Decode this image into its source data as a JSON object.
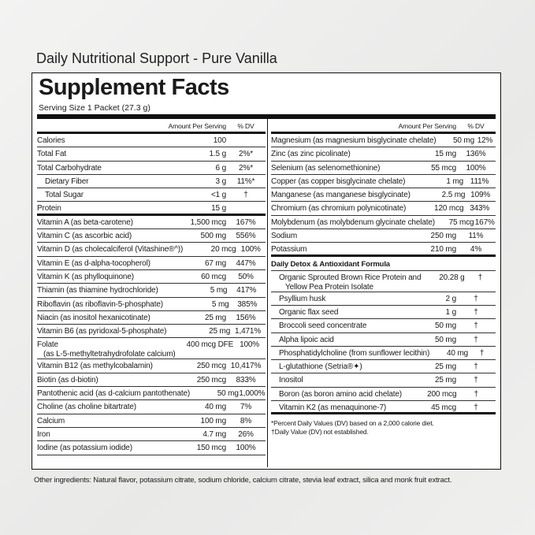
{
  "header": {
    "title": "Daily Nutritional Support - Pure Vanilla"
  },
  "facts": {
    "title": "Supplement Facts",
    "serving": "Serving Size 1 Packet (27.3 g)",
    "left": {
      "amount_header": "Amount Per Serving",
      "dv_header": "% DV",
      "rows": [
        {
          "name": "Calories",
          "amount": "100"
        },
        {
          "name": "Total Fat",
          "amount": "1.5 g",
          "dv": "2%*"
        },
        {
          "name": "Total Carbohydrate",
          "amount": "6 g",
          "dv": "2%*"
        },
        {
          "name": "Dietary Fiber",
          "amount": "3 g",
          "dv": "11%*",
          "indent": 1
        },
        {
          "name": "Total Sugar",
          "amount": "<1 g",
          "dv": "†",
          "indent": 2
        },
        {
          "name": "Protein",
          "amount": "15 g"
        },
        {
          "name": "Vitamin A (as beta-carotene)",
          "amount": "1,500 mcg",
          "dv": "167%"
        },
        {
          "name": "Vitamin C (as ascorbic acid)",
          "amount": "500 mg",
          "dv": "556%"
        },
        {
          "name": "Vitamin D (as cholecalciferol (Vitashine®^))",
          "amount": "20 mcg",
          "dv": "100%"
        },
        {
          "name": "Vitamin E (as d-alpha-tocopherol)",
          "amount": "67 mg",
          "dv": "447%"
        },
        {
          "name": "Vitamin K (as phylloquinone)",
          "amount": "60 mcg",
          "dv": "50%"
        },
        {
          "name": "Thiamin (as thiamine hydrochloride)",
          "amount": "5 mg",
          "dv": "417%"
        },
        {
          "name": "Riboflavin (as riboflavin-5-phosphate)",
          "amount": "5 mg",
          "dv": "385%"
        },
        {
          "name": "Niacin (as inositol hexanicotinate)",
          "amount": "25 mg",
          "dv": "156%"
        },
        {
          "name": "Vitamin B6 (as pyridoxal-5-phosphate)",
          "amount": "25 mg",
          "dv": "1,471%"
        },
        {
          "name": "Folate",
          "sub": "(as L-5-methyltetrahydrofolate calcium)",
          "amount": "400 mcg DFE",
          "dv": "100%"
        },
        {
          "name": "Vitamin B12 (as methylcobalamin)",
          "amount": "250 mcg",
          "dv": "10,417%"
        },
        {
          "name": "Biotin (as d-biotin)",
          "amount": "250 mcg",
          "dv": "833%"
        },
        {
          "name": "Pantothenic acid (as d-calcium pantothenate)",
          "amount": "50 mg",
          "dv": "1,000%"
        },
        {
          "name": "Choline (as choline bitartrate)",
          "amount": "40 mg",
          "dv": "7%"
        },
        {
          "name": "Calcium",
          "amount": "100 mg",
          "dv": "8%"
        },
        {
          "name": "Iron",
          "amount": "4.7 mg",
          "dv": "26%"
        },
        {
          "name": "Iodine (as potassium iodide)",
          "amount": "150 mcg",
          "dv": "100%"
        }
      ]
    },
    "right": {
      "amount_header": "Amount Per Serving",
      "dv_header": "% DV",
      "rows": [
        {
          "name": "Magnesium (as magnesium bisglycinate chelate)",
          "amount": "50 mg",
          "dv": "12%"
        },
        {
          "name": "Zinc (as zinc picolinate)",
          "amount": "15 mg",
          "dv": "136%"
        },
        {
          "name": "Selenium (as selenomethionine)",
          "amount": "55 mcg",
          "dv": "100%"
        },
        {
          "name": "Copper (as copper bisglycinate chelate)",
          "amount": "1 mg",
          "dv": "111%"
        },
        {
          "name": "Manganese (as manganese bisglycinate)",
          "amount": "2.5 mg",
          "dv": "109%"
        },
        {
          "name": "Chromium (as chromium polynicotinate)",
          "amount": "120 mcg",
          "dv": "343%"
        },
        {
          "name": "Molybdenum (as molybdenum glycinate chelate)",
          "amount": "75 mcg",
          "dv": "167%"
        },
        {
          "name": "Sodium",
          "amount": "250 mg",
          "dv": "11%"
        },
        {
          "name": "Potassium",
          "amount": "210 mg",
          "dv": "4%"
        }
      ],
      "section": "Daily Detox & Antioxidant Formula",
      "section_rows": [
        {
          "name": "Organic Sprouted Brown Rice Protein and",
          "sub": "Yellow Pea Protein Isolate",
          "amount": "20.28 g",
          "dv": "†"
        },
        {
          "name": "Psyllium husk",
          "amount": "2 g",
          "dv": "†"
        },
        {
          "name": "Organic flax seed",
          "amount": "1 g",
          "dv": "†"
        },
        {
          "name": "Broccoli seed concentrate",
          "amount": "50 mg",
          "dv": "†"
        },
        {
          "name": "Alpha lipoic acid",
          "amount": "50 mg",
          "dv": "†"
        },
        {
          "name": "Phosphatidylcholine (from sunflower lecithin)",
          "amount": "40 mg",
          "dv": "†"
        },
        {
          "name": "L-glutathione (Setria®✦)",
          "amount": "25 mg",
          "dv": "†"
        },
        {
          "name": "Inositol",
          "amount": "25 mg",
          "dv": "†"
        },
        {
          "name": "Boron (as boron amino acid chelate)",
          "amount": "200 mcg",
          "dv": "†"
        },
        {
          "name": "Vitamin K2 (as menaquinone-7)",
          "amount": "45 mcg",
          "dv": "†"
        }
      ],
      "footnotes": [
        "*Percent Daily Values (DV) based on a 2,000 calorie diet.",
        "†Daily Value (DV) not established."
      ]
    }
  },
  "other_ingredients": "Other ingredients: Natural flavor, potassium citrate, sodium chloride, calcium citrate, stevia leaf extract, silica and monk fruit extract."
}
